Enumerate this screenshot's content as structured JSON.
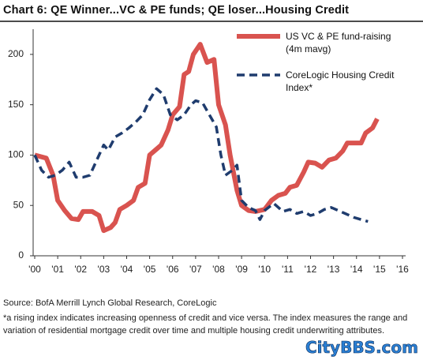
{
  "chart_data": {
    "type": "line",
    "title": "Chart 6: QE Winner...VC & PE funds; QE loser...Housing Credit",
    "xlim": [
      2000,
      2016
    ],
    "xticks": [
      {
        "value": 2000,
        "label": "'00"
      },
      {
        "value": 2001,
        "label": "'01"
      },
      {
        "value": 2002,
        "label": "'02"
      },
      {
        "value": 2003,
        "label": "'03"
      },
      {
        "value": 2004,
        "label": "'04"
      },
      {
        "value": 2005,
        "label": "'05"
      },
      {
        "value": 2006,
        "label": "'06"
      },
      {
        "value": 2007,
        "label": "'07"
      },
      {
        "value": 2008,
        "label": "'08"
      },
      {
        "value": 2009,
        "label": "'09"
      },
      {
        "value": 2010,
        "label": "'10"
      },
      {
        "value": 2011,
        "label": "'11"
      },
      {
        "value": 2012,
        "label": "'12"
      },
      {
        "value": 2013,
        "label": "'13"
      },
      {
        "value": 2014,
        "label": "'14"
      },
      {
        "value": 2015,
        "label": "'15"
      },
      {
        "value": 2016,
        "label": "'16"
      }
    ],
    "ylim": [
      0,
      225
    ],
    "yticks": [
      0,
      50,
      100,
      150,
      200
    ],
    "grid": false,
    "legend": "top-right",
    "series": [
      {
        "name": "US VC & PE fund-raising (4m mavg)",
        "color": "#d9534f",
        "style": "solid",
        "x": [
          2000,
          2000.5,
          2000.8,
          2001.0,
          2001.3,
          2001.6,
          2001.9,
          2002.1,
          2002.5,
          2002.8,
          2003.0,
          2003.3,
          2003.5,
          2003.7,
          2004.0,
          2004.3,
          2004.5,
          2004.8,
          2005.0,
          2005.3,
          2005.5,
          2005.8,
          2006.0,
          2006.3,
          2006.5,
          2006.7,
          2006.9,
          2007.2,
          2007.5,
          2007.8,
          2008.0,
          2008.3,
          2008.5,
          2008.8,
          2009.0,
          2009.3,
          2009.6,
          2010.0,
          2010.3,
          2010.6,
          2010.9,
          2011.1,
          2011.4,
          2011.7,
          2011.9,
          2012.2,
          2012.5,
          2012.8,
          2013.1,
          2013.4,
          2013.6,
          2013.9,
          2014.2,
          2014.4,
          2014.7,
          2014.9
        ],
        "values": [
          100,
          97,
          80,
          55,
          45,
          37,
          36,
          44,
          44,
          40,
          25,
          28,
          33,
          46,
          50,
          55,
          68,
          72,
          100,
          106,
          110,
          125,
          140,
          148,
          180,
          183,
          200,
          210,
          192,
          195,
          150,
          130,
          100,
          65,
          50,
          45,
          44,
          46,
          55,
          60,
          62,
          68,
          70,
          83,
          93,
          92,
          88,
          95,
          97,
          104,
          112,
          112,
          112,
          122,
          127,
          136
        ]
      },
      {
        "name": "CoreLogic Housing Credit Index*",
        "color": "#1f3c6e",
        "style": "dashed",
        "x": [
          2000,
          2000.3,
          2000.6,
          2000.9,
          2001.2,
          2001.5,
          2001.8,
          2002.1,
          2002.4,
          2002.7,
          2003.0,
          2003.2,
          2003.5,
          2003.8,
          2004.1,
          2004.4,
          2004.7,
          2005.0,
          2005.3,
          2005.6,
          2005.9,
          2006.2,
          2006.5,
          2006.8,
          2007.0,
          2007.3,
          2007.6,
          2007.9,
          2008.1,
          2008.3,
          2008.6,
          2008.8,
          2009.0,
          2009.3,
          2009.6,
          2009.8,
          2010.0,
          2010.4,
          2010.8,
          2011.1,
          2011.4,
          2011.7,
          2012.0,
          2012.3,
          2012.6,
          2012.9,
          2013.2,
          2013.5,
          2013.9,
          2014.2,
          2014.5
        ],
        "values": [
          100,
          85,
          78,
          80,
          85,
          93,
          78,
          78,
          80,
          95,
          110,
          105,
          118,
          122,
          127,
          133,
          140,
          155,
          166,
          160,
          140,
          135,
          140,
          150,
          154,
          152,
          140,
          128,
          100,
          80,
          85,
          90,
          55,
          48,
          45,
          36,
          45,
          52,
          44,
          46,
          42,
          44,
          40,
          42,
          46,
          48,
          45,
          42,
          38,
          36,
          34
        ]
      }
    ]
  },
  "footer": {
    "source": "Source: BofA Merrill Lynch Global Research, CoreLogic",
    "note": "*a rising index indicates increasing openness of credit and vice versa. The index measures the range and variation of residential mortgage credit over time and multiple housing credit underwriting attributes.",
    "watermark": "CityBBS.com"
  }
}
